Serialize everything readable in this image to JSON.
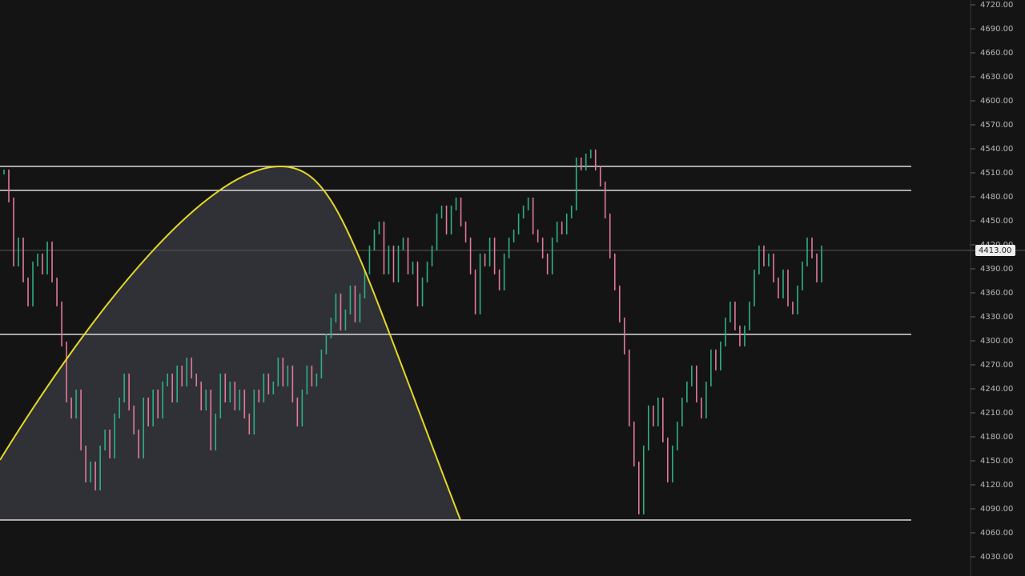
{
  "chart_data": {
    "type": "candlestick",
    "ylim": [
      4006,
      4726
    ],
    "yticks": [
      {
        "value": 4720,
        "label": "4720.00"
      },
      {
        "value": 4690,
        "label": "4690.00"
      },
      {
        "value": 4660,
        "label": "4660.00"
      },
      {
        "value": 4630,
        "label": "4630.00"
      },
      {
        "value": 4600,
        "label": "4600.00"
      },
      {
        "value": 4570,
        "label": "4570.00"
      },
      {
        "value": 4540,
        "label": "4540.00"
      },
      {
        "value": 4510,
        "label": "4510.00"
      },
      {
        "value": 4480,
        "label": "4480.00"
      },
      {
        "value": 4450,
        "label": "4450.00"
      },
      {
        "value": 4420,
        "label": "4420.00"
      },
      {
        "value": 4390,
        "label": "4390.00"
      },
      {
        "value": 4360,
        "label": "4360.00"
      },
      {
        "value": 4330,
        "label": "4330.00"
      },
      {
        "value": 4300,
        "label": "4300.00"
      },
      {
        "value": 4270,
        "label": "4270.00"
      },
      {
        "value": 4240,
        "label": "4240.00"
      },
      {
        "value": 4210,
        "label": "4210.00"
      },
      {
        "value": 4180,
        "label": "4180.00"
      },
      {
        "value": 4150,
        "label": "4150.00"
      },
      {
        "value": 4120,
        "label": "4120.00"
      },
      {
        "value": 4090,
        "label": "4090.00"
      },
      {
        "value": 4060,
        "label": "4060.00"
      },
      {
        "value": 4030,
        "label": "4030.00"
      }
    ],
    "last_price": {
      "value": 4413,
      "label": "4413.00"
    },
    "levels": [
      4518,
      4488,
      4308,
      4076
    ],
    "up_color": "#2fae86",
    "down_color": "#e07a96",
    "level_color": "#d8d8d8",
    "values": [
      4511,
      4476,
      4396,
      4426,
      4376,
      4346,
      4396,
      4406,
      4386,
      4421,
      4376,
      4346,
      4296,
      4226,
      4206,
      4236,
      4166,
      4126,
      4146,
      4116,
      4166,
      4186,
      4156,
      4206,
      4226,
      4256,
      4216,
      4186,
      4156,
      4226,
      4196,
      4236,
      4206,
      4246,
      4256,
      4226,
      4266,
      4246,
      4276,
      4256,
      4246,
      4216,
      4236,
      4166,
      4206,
      4256,
      4226,
      4246,
      4216,
      4236,
      4206,
      4186,
      4236,
      4226,
      4256,
      4236,
      4246,
      4276,
      4246,
      4266,
      4226,
      4196,
      4236,
      4266,
      4246,
      4256,
      4286,
      4306,
      4326,
      4356,
      4316,
      4336,
      4366,
      4326,
      4356,
      4386,
      4416,
      4436,
      4446,
      4386,
      4416,
      4376,
      4416,
      4426,
      4386,
      4396,
      4346,
      4376,
      4396,
      4416,
      4456,
      4466,
      4436,
      4466,
      4476,
      4446,
      4426,
      4386,
      4336,
      4406,
      4396,
      4426,
      4386,
      4366,
      4406,
      4426,
      4436,
      4456,
      4466,
      4476,
      4436,
      4426,
      4406,
      4386,
      4426,
      4446,
      4436,
      4456,
      4466,
      4526,
      4516,
      4531,
      4536,
      4516,
      4496,
      4456,
      4406,
      4366,
      4326,
      4286,
      4196,
      4146,
      4086,
      4166,
      4216,
      4196,
      4226,
      4176,
      4126,
      4166,
      4196,
      4226,
      4246,
      4266,
      4226,
      4206,
      4246,
      4286,
      4266,
      4296,
      4326,
      4346,
      4316,
      4296,
      4316,
      4346,
      4386,
      4416,
      4396,
      4406,
      4376,
      4356,
      4386,
      4346,
      4336,
      4366,
      4396,
      4426,
      4406,
      4376,
      4416
    ]
  }
}
